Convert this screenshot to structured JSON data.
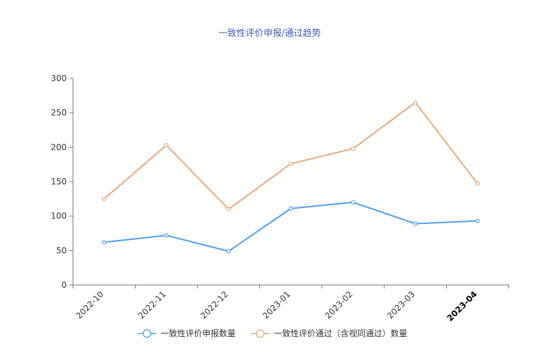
{
  "chart_data": {
    "type": "line",
    "title": "一致性评价申报/通过趋势",
    "categories": [
      "2022-10",
      "2022-11",
      "2022-12",
      "2023-01",
      "2023-02",
      "2023-03",
      "2023-04"
    ],
    "series": [
      {
        "name": "一致性评价申报数量",
        "color": "#4a9ff0",
        "values": [
          62,
          72,
          49,
          111,
          120,
          89,
          93
        ]
      },
      {
        "name": "一致性评价通过（含视同通过）数量",
        "color": "#e8a87a",
        "values": [
          125,
          203,
          110,
          176,
          198,
          265,
          147
        ]
      }
    ],
    "yticks": [
      0,
      50,
      100,
      150,
      200,
      250,
      300
    ],
    "ylim": [
      0,
      300
    ],
    "grid": false,
    "legend": "bottom",
    "highlighted_category": "2023-04"
  }
}
